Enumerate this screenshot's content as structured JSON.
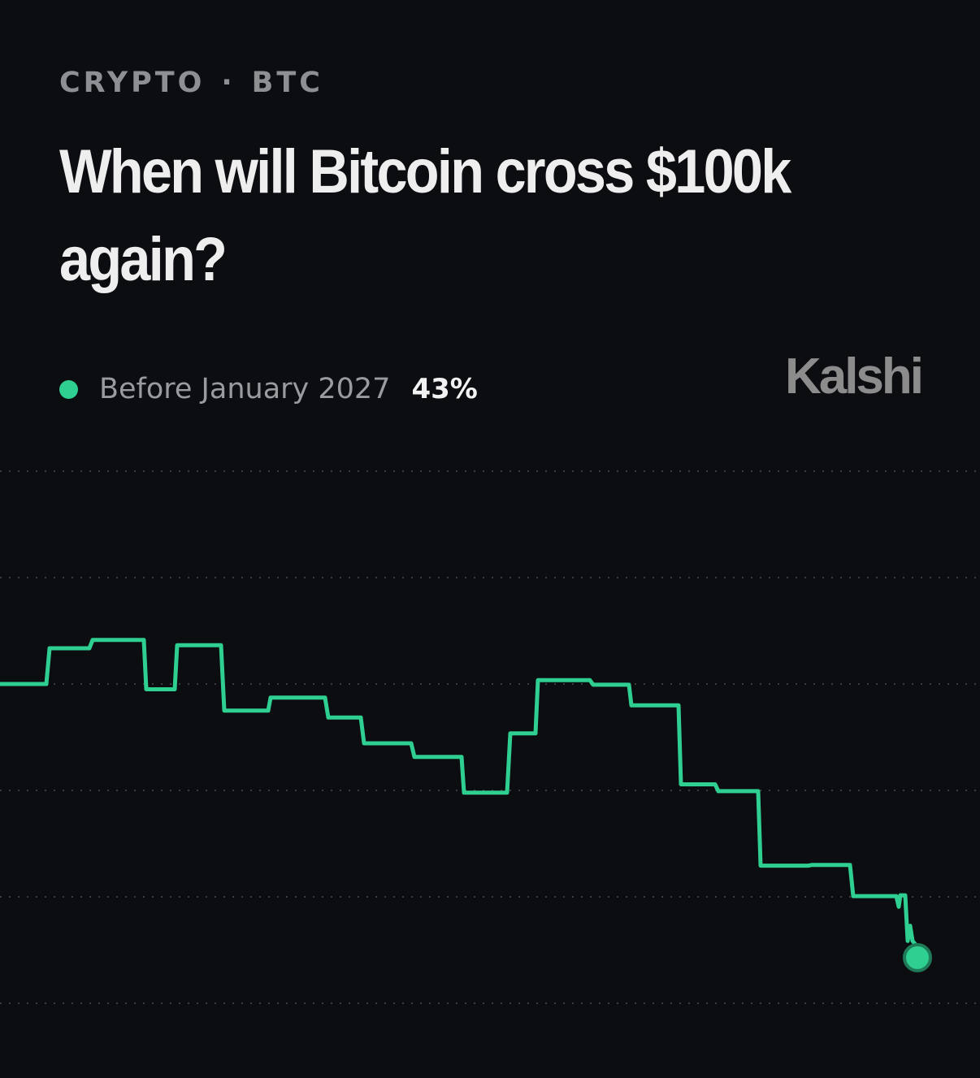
{
  "header": {
    "category": "CRYPTO",
    "separator": "·",
    "subcategory": "BTC",
    "title": "When will Bitcoin cross $100k again?"
  },
  "legend": {
    "label": "Before January 2027",
    "value": "43%"
  },
  "brand": {
    "name": "Kalshi"
  },
  "colors": {
    "background": "#0b0d10",
    "line": "#2fcf92",
    "grid": "#3a3c40"
  },
  "chart_data": {
    "type": "line",
    "title": "",
    "xlabel": "",
    "ylabel": "",
    "x_unit": "time index (no axis labels shown)",
    "ylim": [
      40,
      75
    ],
    "grid": true,
    "grid_lines_y": [
      40,
      47,
      54,
      61,
      68,
      75
    ],
    "legend_position": "top-left",
    "series": [
      {
        "name": "Before January 2027",
        "color": "#2fcf92",
        "last_value": 43,
        "points": [
          [
            0,
            61
          ],
          [
            57,
            61
          ],
          [
            57,
            61
          ],
          [
            61,
            63.35
          ],
          [
            110,
            63.35
          ],
          [
            114,
            63.9
          ],
          [
            177,
            63.9
          ],
          [
            180,
            60.65
          ],
          [
            215,
            60.65
          ],
          [
            218,
            63.55
          ],
          [
            272,
            63.55
          ],
          [
            276,
            59.25
          ],
          [
            330,
            59.25
          ],
          [
            333,
            60.1
          ],
          [
            400,
            60.1
          ],
          [
            404,
            58.8
          ],
          [
            444,
            58.8
          ],
          [
            448,
            57.1
          ],
          [
            506,
            57.1
          ],
          [
            510,
            56.2
          ],
          [
            568,
            56.2
          ],
          [
            571,
            53.85
          ],
          [
            624,
            53.85
          ],
          [
            628,
            57.75
          ],
          [
            659,
            57.75
          ],
          [
            662,
            61.25
          ],
          [
            726,
            61.25
          ],
          [
            730,
            60.95
          ],
          [
            774,
            60.95
          ],
          [
            777,
            59.6
          ],
          [
            835,
            59.6
          ],
          [
            838,
            54.4
          ],
          [
            880,
            54.4
          ],
          [
            884,
            53.95
          ],
          [
            933,
            53.95
          ],
          [
            936,
            49.05
          ],
          [
            995,
            49.05
          ],
          [
            999,
            49.1
          ],
          [
            1046,
            49.1
          ],
          [
            1050,
            47.05
          ],
          [
            1103,
            47.05
          ],
          [
            1106,
            46.35
          ],
          [
            1108,
            47.1
          ],
          [
            1114,
            47.1
          ],
          [
            1117,
            44.1
          ],
          [
            1120,
            45.1
          ],
          [
            1123,
            44.1
          ],
          [
            1126,
            43.9
          ],
          [
            1129,
            43
          ]
        ]
      }
    ]
  }
}
